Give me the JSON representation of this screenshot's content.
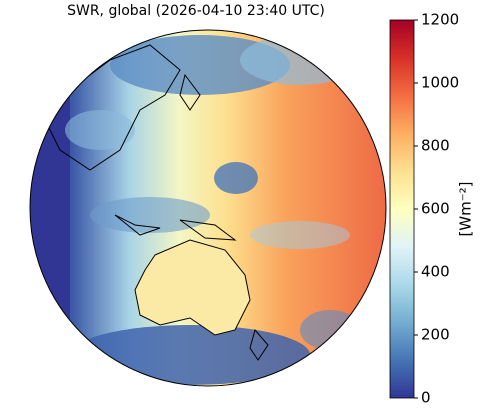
{
  "title": "SWR, global (2026-04-10 23:40 UTC)",
  "colorbar": {
    "label": "[Wm⁻²]",
    "lim": [
      0,
      1200
    ],
    "ticks": [
      0,
      200,
      400,
      600,
      800,
      1000,
      1200
    ],
    "colors": [
      "#313695",
      "#4575b4",
      "#74add1",
      "#abd9e9",
      "#e0f3f8",
      "#ffffbf",
      "#fee090",
      "#fdae61",
      "#f46d43",
      "#d73027",
      "#a50026"
    ]
  }
}
